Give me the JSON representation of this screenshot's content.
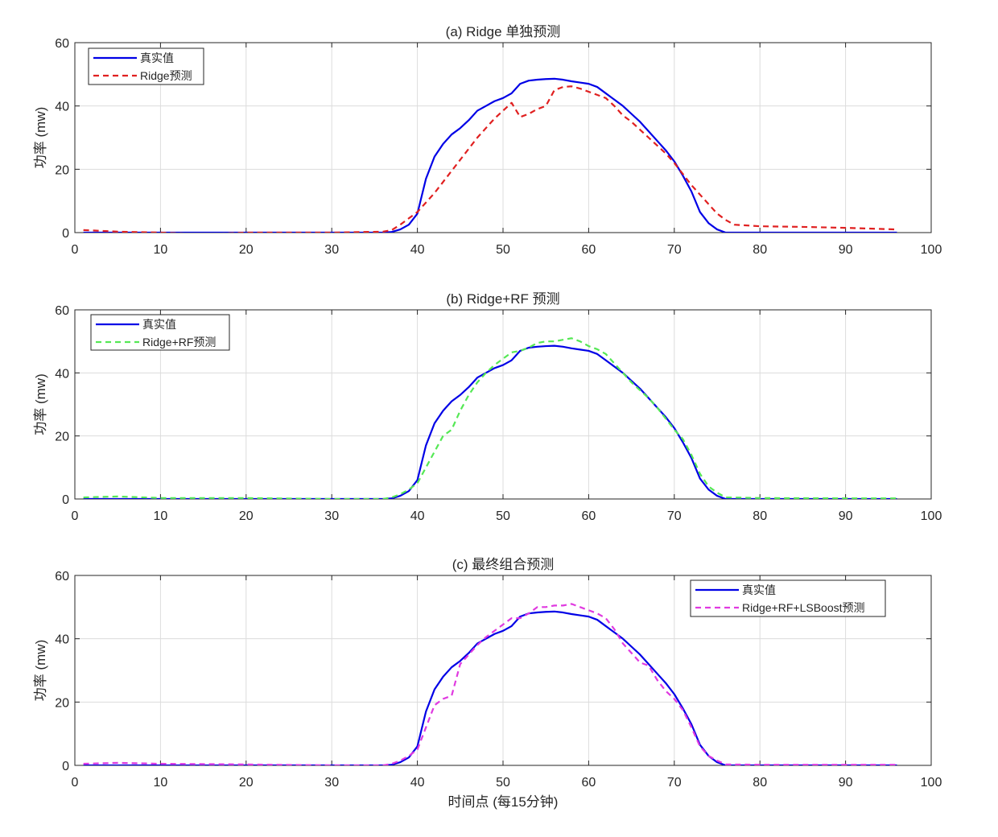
{
  "figure": {
    "xlabel": "时间点 (每15分钟)"
  },
  "colors": {
    "true": "#0000e6",
    "ridge": "#e02020",
    "ridge_rf": "#55e855",
    "final": "#e03ae0",
    "grid": "#dcdcdc",
    "axis": "#262626"
  },
  "chart_data": [
    {
      "type": "line",
      "title": "(a) Ridge 单独预测",
      "xlabel": "",
      "ylabel": "功率 (mw)",
      "xlim": [
        0,
        100
      ],
      "ylim": [
        0,
        60
      ],
      "xticks": [
        0,
        10,
        20,
        30,
        40,
        50,
        60,
        70,
        80,
        90,
        100
      ],
      "yticks": [
        0,
        20,
        40,
        60
      ],
      "grid": true,
      "legend_position": "top-left",
      "series": [
        {
          "name": "真实值",
          "style": "solid",
          "color": "#0000e6",
          "x": [
            1,
            10,
            20,
            30,
            36,
            37,
            38,
            39,
            40,
            41,
            42,
            43,
            44,
            45,
            46,
            47,
            48,
            49,
            50,
            51,
            52,
            53,
            54,
            55,
            56,
            57,
            58,
            59,
            60,
            61,
            62,
            63,
            64,
            65,
            66,
            67,
            68,
            69,
            70,
            71,
            72,
            73,
            74,
            75,
            76,
            80,
            90,
            96
          ],
          "y": [
            0,
            0,
            0,
            0,
            0,
            0.2,
            1,
            2.5,
            6,
            17,
            24,
            28,
            31,
            33,
            35.5,
            38.5,
            40,
            41.5,
            42.5,
            44,
            47,
            48,
            48.3,
            48.5,
            48.6,
            48.3,
            47.8,
            47.4,
            47,
            46,
            44,
            42,
            40,
            37.5,
            35,
            32,
            29,
            26,
            22.5,
            18,
            13,
            6.5,
            3,
            1,
            0,
            0,
            0,
            0
          ]
        },
        {
          "name": "Ridge预测",
          "style": "dashed",
          "color": "#e02020",
          "x": [
            1,
            5,
            10,
            15,
            20,
            30,
            36,
            37,
            38,
            39,
            40,
            41,
            42,
            43,
            44,
            45,
            46,
            47,
            48,
            49,
            50,
            51,
            52,
            53,
            54,
            55,
            56,
            57,
            58,
            59,
            60,
            61,
            62,
            63,
            64,
            65,
            66,
            67,
            68,
            69,
            70,
            71,
            72,
            73,
            74,
            75,
            76,
            77,
            80,
            85,
            90,
            96
          ],
          "y": [
            0.8,
            0.3,
            0,
            -0.5,
            0,
            0,
            0.3,
            0.8,
            2.5,
            4.5,
            6.5,
            9.5,
            12.5,
            16,
            19.5,
            23,
            26.5,
            30,
            33,
            36,
            38.5,
            41,
            36.5,
            37.5,
            39,
            40,
            45,
            46,
            46.2,
            45.5,
            44.5,
            43.5,
            42.5,
            40,
            37,
            35,
            32.5,
            30,
            27.5,
            25,
            22,
            18.5,
            15,
            12,
            9,
            6,
            4,
            2.5,
            2,
            1.8,
            1.5,
            1
          ]
        }
      ]
    },
    {
      "type": "line",
      "title": "(b) Ridge+RF 预测",
      "xlabel": "",
      "ylabel": "功率 (mw)",
      "xlim": [
        0,
        100
      ],
      "ylim": [
        0,
        60
      ],
      "xticks": [
        0,
        10,
        20,
        30,
        40,
        50,
        60,
        70,
        80,
        90,
        100
      ],
      "yticks": [
        0,
        20,
        40,
        60
      ],
      "grid": true,
      "legend_position": "top-left",
      "series": [
        {
          "name": "真实值",
          "style": "solid",
          "color": "#0000e6",
          "x": [
            1,
            10,
            20,
            30,
            36,
            37,
            38,
            39,
            40,
            41,
            42,
            43,
            44,
            45,
            46,
            47,
            48,
            49,
            50,
            51,
            52,
            53,
            54,
            55,
            56,
            57,
            58,
            59,
            60,
            61,
            62,
            63,
            64,
            65,
            66,
            67,
            68,
            69,
            70,
            71,
            72,
            73,
            74,
            75,
            76,
            80,
            90,
            96
          ],
          "y": [
            0,
            0,
            0,
            0,
            0,
            0.2,
            1,
            2.5,
            6,
            17,
            24,
            28,
            31,
            33,
            35.5,
            38.5,
            40,
            41.5,
            42.5,
            44,
            47,
            48,
            48.3,
            48.5,
            48.6,
            48.3,
            47.8,
            47.4,
            47,
            46,
            44,
            42,
            40,
            37.5,
            35,
            32,
            29,
            26,
            22.5,
            18,
            13,
            6.5,
            3,
            1,
            0,
            0,
            0,
            0
          ]
        },
        {
          "name": "Ridge+RF预测",
          "style": "dashed",
          "color": "#55e855",
          "x": [
            1,
            5,
            10,
            20,
            30,
            36,
            37,
            38,
            39,
            40,
            41,
            42,
            43,
            44,
            45,
            46,
            47,
            48,
            49,
            50,
            51,
            52,
            53,
            54,
            55,
            56,
            57,
            58,
            59,
            60,
            61,
            62,
            63,
            64,
            65,
            66,
            67,
            68,
            69,
            70,
            71,
            72,
            73,
            74,
            75,
            76,
            80,
            90,
            96
          ],
          "y": [
            0.5,
            0.8,
            0.3,
            0.3,
            0,
            0,
            0.5,
            1.5,
            3,
            5,
            10,
            15,
            20,
            22,
            28,
            33,
            37,
            40,
            42.5,
            44.5,
            46.5,
            47,
            48,
            49.5,
            50,
            50,
            50.5,
            51,
            50,
            48.5,
            47.5,
            46,
            43,
            40,
            37,
            34.5,
            32,
            29,
            25.5,
            22,
            19,
            14,
            8,
            4,
            2,
            0.5,
            0.3,
            0.2,
            0.2
          ]
        }
      ]
    },
    {
      "type": "line",
      "title": "(c) 最终组合预测",
      "xlabel": "时间点 (每15分钟)",
      "ylabel": "功率 (mw)",
      "xlim": [
        0,
        100
      ],
      "ylim": [
        0,
        60
      ],
      "xticks": [
        0,
        10,
        20,
        30,
        40,
        50,
        60,
        70,
        80,
        90,
        100
      ],
      "yticks": [
        0,
        20,
        40,
        60
      ],
      "grid": true,
      "legend_position": "top-right",
      "series": [
        {
          "name": "真实值",
          "style": "solid",
          "color": "#0000e6",
          "x": [
            1,
            10,
            20,
            30,
            36,
            37,
            38,
            39,
            40,
            41,
            42,
            43,
            44,
            45,
            46,
            47,
            48,
            49,
            50,
            51,
            52,
            53,
            54,
            55,
            56,
            57,
            58,
            59,
            60,
            61,
            62,
            63,
            64,
            65,
            66,
            67,
            68,
            69,
            70,
            71,
            72,
            73,
            74,
            75,
            76,
            80,
            90,
            96
          ],
          "y": [
            0,
            0,
            0,
            0,
            0,
            0.2,
            1,
            2.5,
            6,
            17,
            24,
            28,
            31,
            33,
            35.5,
            38.5,
            40,
            41.5,
            42.5,
            44,
            47,
            48,
            48.3,
            48.5,
            48.6,
            48.3,
            47.8,
            47.4,
            47,
            46,
            44,
            42,
            40,
            37.5,
            35,
            32,
            29,
            26,
            22.5,
            18,
            13,
            6.5,
            3,
            1,
            0,
            0,
            0,
            0
          ]
        },
        {
          "name": "Ridge+RF+LSBoost预测",
          "style": "dashed",
          "color": "#e03ae0",
          "x": [
            1,
            5,
            10,
            20,
            30,
            36,
            37,
            38,
            39,
            40,
            41,
            42,
            43,
            44,
            45,
            46,
            47,
            48,
            49,
            50,
            51,
            52,
            53,
            54,
            55,
            56,
            57,
            58,
            59,
            60,
            61,
            62,
            63,
            64,
            65,
            66,
            67,
            68,
            69,
            70,
            71,
            72,
            73,
            74,
            75,
            76,
            80,
            90,
            96
          ],
          "y": [
            0.5,
            0.8,
            0.5,
            0.3,
            0,
            0,
            0.5,
            1.5,
            3,
            5,
            12,
            19,
            21,
            22,
            32,
            35,
            38,
            40.5,
            42.5,
            44.5,
            46.5,
            46.5,
            48,
            50,
            50,
            50.5,
            50.5,
            51,
            50,
            49,
            48,
            46.5,
            43,
            38.5,
            35.5,
            32.5,
            31.5,
            27,
            23.5,
            21,
            17.5,
            12,
            6,
            3,
            1.5,
            0.3,
            0.2,
            0.2,
            0.2
          ]
        }
      ]
    }
  ]
}
